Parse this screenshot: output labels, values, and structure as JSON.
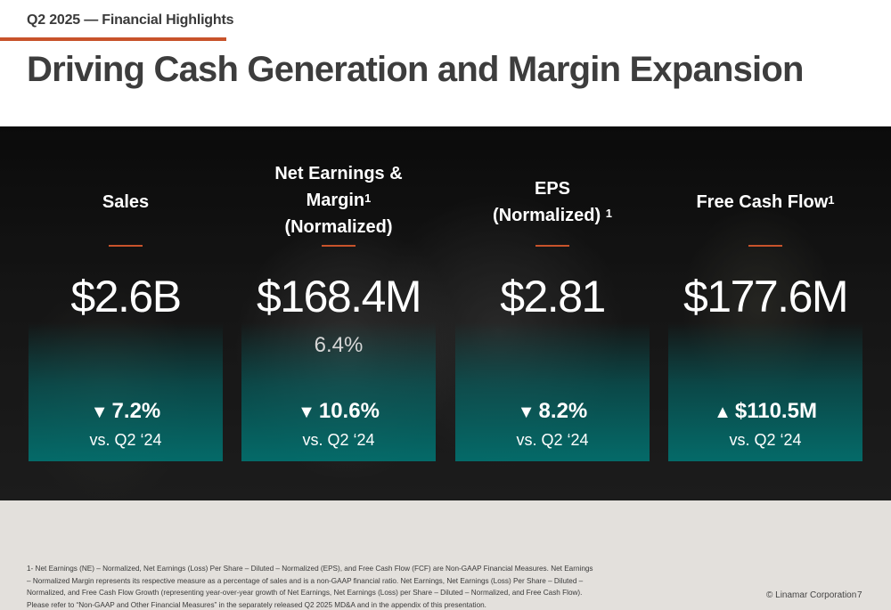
{
  "header": {
    "kicker": "Q2 2025 — Financial Highlights",
    "title": "Driving Cash Generation and Margin Expansion"
  },
  "colors": {
    "accent": "#c8532b",
    "teal": "#00786f"
  },
  "metrics": [
    {
      "head_lines": [
        "Sales"
      ],
      "sup": "",
      "value": "$2.6B",
      "margin": "",
      "direction": "down",
      "arrow": "▼",
      "change": "7.2%",
      "vs": "vs. Q2 ‘24"
    },
    {
      "head_lines": [
        "Net Earnings &",
        "Margin",
        "(Normalized)"
      ],
      "sup": "1",
      "value": "$168.4M",
      "margin": "6.4%",
      "direction": "down",
      "arrow": "▼",
      "change": "10.6%",
      "vs": "vs. Q2 ‘24"
    },
    {
      "head_lines": [
        "EPS",
        "(Normalized)"
      ],
      "sup": "1",
      "value": "$2.81",
      "margin": "",
      "direction": "down",
      "arrow": "▼",
      "change": "8.2%",
      "vs": "vs. Q2 ‘24"
    },
    {
      "head_lines": [
        "Free Cash Flow"
      ],
      "sup": "1",
      "value": "$177.6M",
      "margin": "",
      "direction": "up",
      "arrow": "▲",
      "change": "$110.5M",
      "vs": "vs. Q2 ‘24"
    }
  ],
  "footer": {
    "footnote": "1- Net Earnings (NE) – Normalized, Net Earnings (Loss) Per Share – Diluted – Normalized (EPS), and Free Cash Flow (FCF) are Non-GAAP Financial Measures. Net Earnings – Normalized Margin represents its respective measure as a percentage of sales and is a non-GAAP financial ratio. Net Earnings, Net Earnings (Loss) Per Share – Diluted – Normalized, and Free Cash Flow Growth (representing year-over-year growth of Net Earnings, Net Earnings (Loss) per Share – Diluted – Normalized, and Free Cash Flow). Please refer to “Non-GAAP and Other Financial Measures” in the separately released Q2 2025 MD&A and in the appendix of this presentation.",
    "copyright": "© Linamar Corporation",
    "page_number": "7"
  }
}
